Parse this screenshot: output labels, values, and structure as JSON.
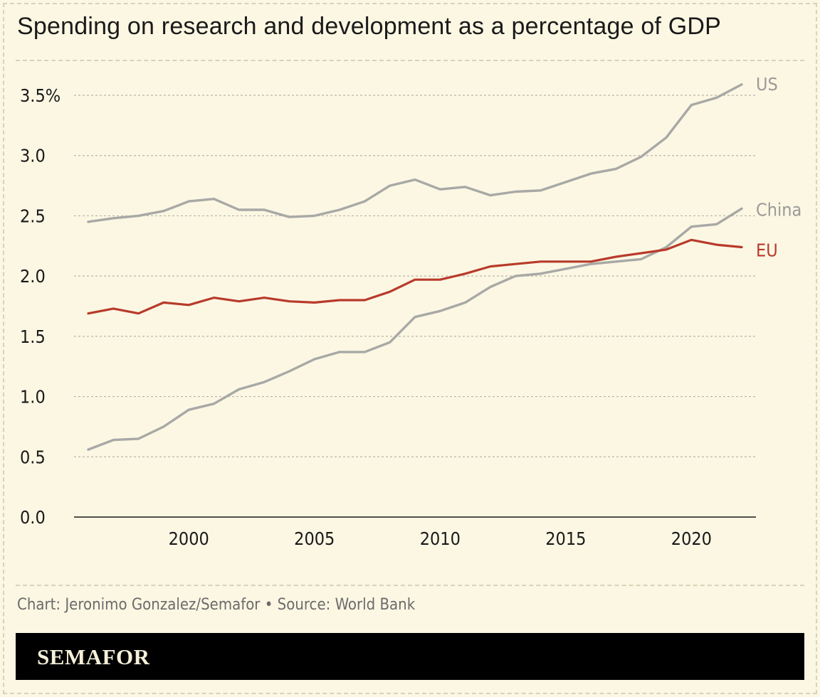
{
  "title": "Spending on research and development as a percentage of GDP",
  "credit": "Chart: Jeronimo Gonzalez/Semafor • Source: World Bank",
  "brand": "SEMAFOR",
  "colors": {
    "background": "#fbf7e3",
    "us": "#a8a8a6",
    "china": "#a8a8a6",
    "eu": "#b83a2a",
    "grid": "#b9b6a6",
    "axis": "#1a1a1a"
  },
  "chart_data": {
    "type": "line",
    "title": "Spending on research and development as a percentage of GDP",
    "xlabel": "",
    "ylabel": "",
    "xlim": [
      1996,
      2022
    ],
    "ylim": [
      0,
      3.5
    ],
    "x_ticks": [
      2000,
      2005,
      2010,
      2015,
      2020
    ],
    "x_tick_labels": [
      "2000",
      "2005",
      "2010",
      "2015",
      "2020"
    ],
    "y_ticks": [
      0,
      0.5,
      1.0,
      1.5,
      2.0,
      2.5,
      3.0,
      3.5
    ],
    "y_tick_labels": [
      "0.0",
      "0.5",
      "1.0",
      "1.5",
      "2.0",
      "2.5",
      "3.0",
      "3.5%"
    ],
    "grid": "horizontal dashed",
    "legend": "direct labels at line ends",
    "x": [
      1996,
      1997,
      1998,
      1999,
      2000,
      2001,
      2002,
      2003,
      2004,
      2005,
      2006,
      2007,
      2008,
      2009,
      2010,
      2011,
      2012,
      2013,
      2014,
      2015,
      2016,
      2017,
      2018,
      2019,
      2020,
      2021,
      2022
    ],
    "series": [
      {
        "name": "US",
        "color": "#a8a8a6",
        "values": [
          2.45,
          2.48,
          2.5,
          2.54,
          2.62,
          2.64,
          2.55,
          2.55,
          2.49,
          2.5,
          2.55,
          2.62,
          2.75,
          2.8,
          2.72,
          2.74,
          2.67,
          2.7,
          2.71,
          2.78,
          2.85,
          2.89,
          2.99,
          3.15,
          3.42,
          3.48,
          3.59
        ]
      },
      {
        "name": "China",
        "color": "#a8a8a6",
        "values": [
          0.56,
          0.64,
          0.65,
          0.75,
          0.89,
          0.94,
          1.06,
          1.12,
          1.21,
          1.31,
          1.37,
          1.37,
          1.45,
          1.66,
          1.71,
          1.78,
          1.91,
          2.0,
          2.02,
          2.06,
          2.1,
          2.12,
          2.14,
          2.24,
          2.41,
          2.43,
          2.56
        ]
      },
      {
        "name": "EU",
        "color": "#b83a2a",
        "values": [
          1.69,
          1.73,
          1.69,
          1.78,
          1.76,
          1.82,
          1.79,
          1.82,
          1.79,
          1.78,
          1.8,
          1.8,
          1.87,
          1.97,
          1.97,
          2.02,
          2.08,
          2.1,
          2.12,
          2.12,
          2.12,
          2.16,
          2.19,
          2.22,
          2.3,
          2.26,
          2.24
        ]
      }
    ]
  }
}
